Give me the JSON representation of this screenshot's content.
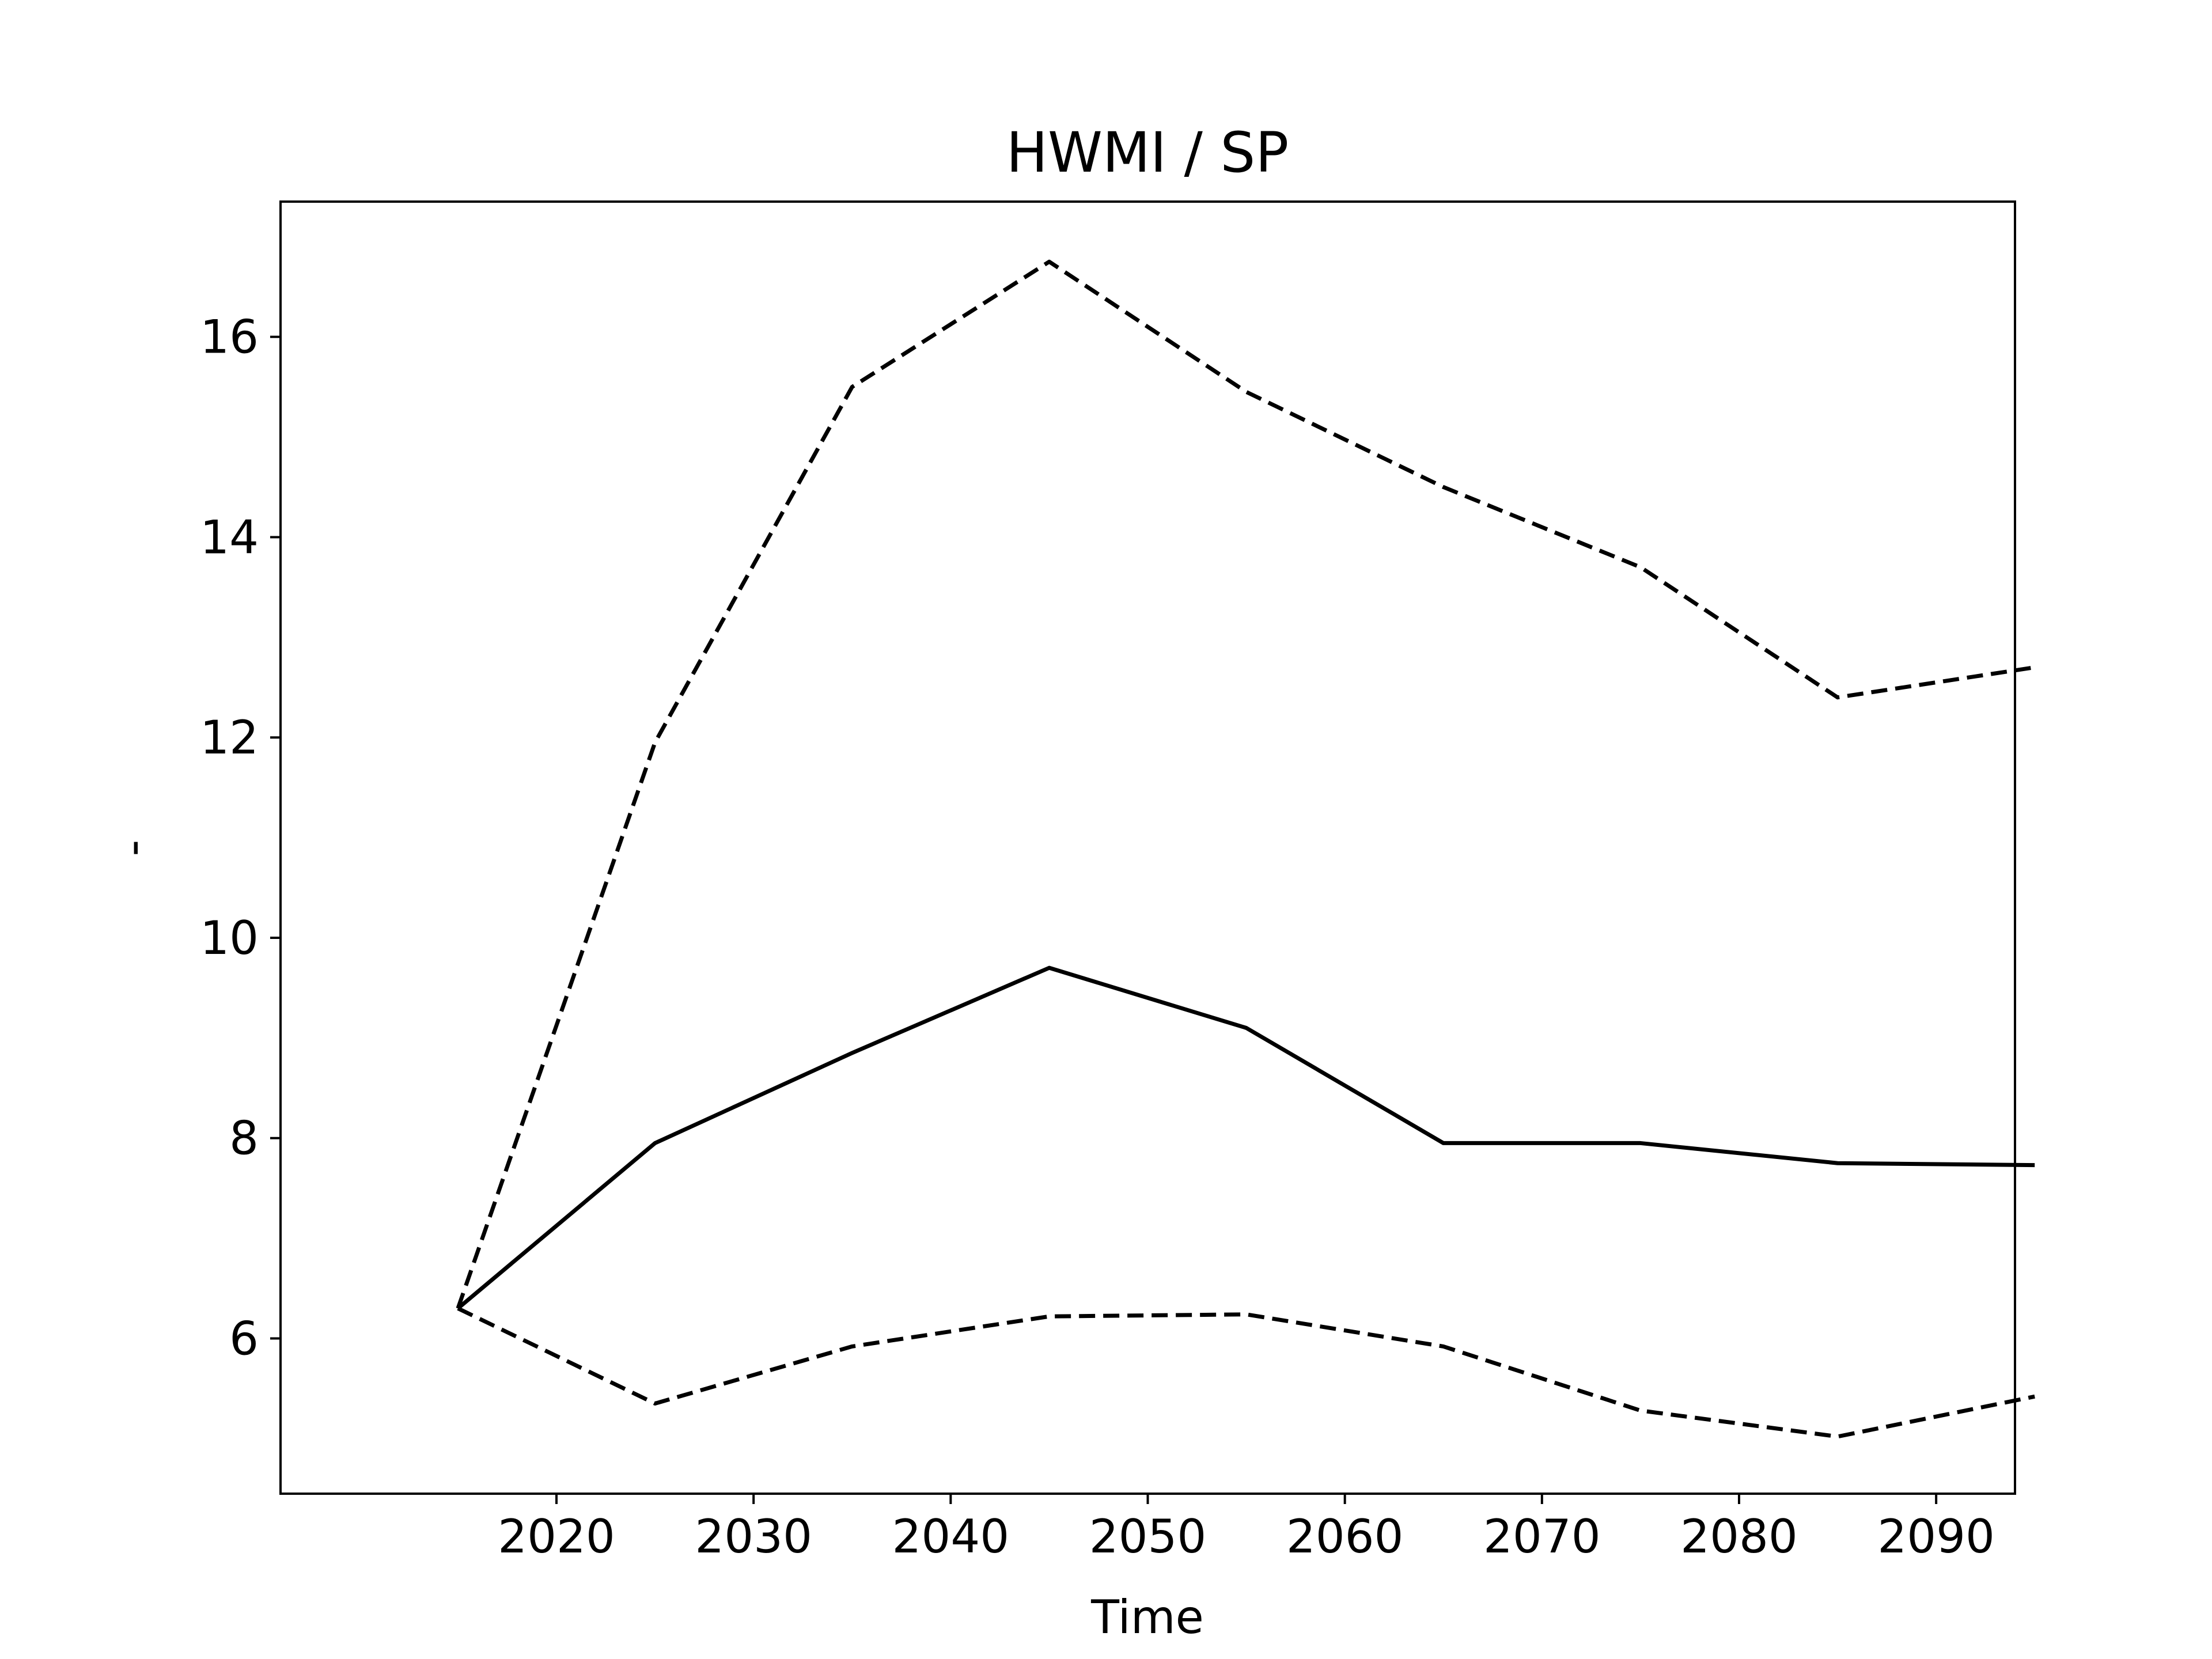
{
  "chart_data": {
    "type": "line",
    "title": "HWMI / SP",
    "xlabel": "Time",
    "ylabel": "-",
    "x": [
      2015,
      2025,
      2035,
      2045,
      2055,
      2065,
      2075,
      2085,
      2095
    ],
    "xlim": [
      2006,
      2094
    ],
    "ylim": [
      4.45,
      17.35
    ],
    "xticks": [
      2020,
      2030,
      2040,
      2050,
      2060,
      2070,
      2080,
      2090
    ],
    "yticks": [
      6,
      8,
      10,
      12,
      14,
      16
    ],
    "grid": false,
    "series": [
      {
        "style": "dashed",
        "color": "#000000",
        "values": [
          6.3,
          11.95,
          15.5,
          16.75,
          15.45,
          14.5,
          13.7,
          12.4,
          12.7
        ]
      },
      {
        "style": "solid",
        "color": "#000000",
        "values": [
          6.3,
          7.95,
          8.85,
          9.7,
          9.1,
          7.95,
          7.95,
          7.75,
          7.73
        ]
      },
      {
        "style": "dashed",
        "color": "#000000",
        "values": [
          6.3,
          5.35,
          5.92,
          6.22,
          6.24,
          5.92,
          5.28,
          5.02,
          5.42
        ]
      }
    ]
  }
}
